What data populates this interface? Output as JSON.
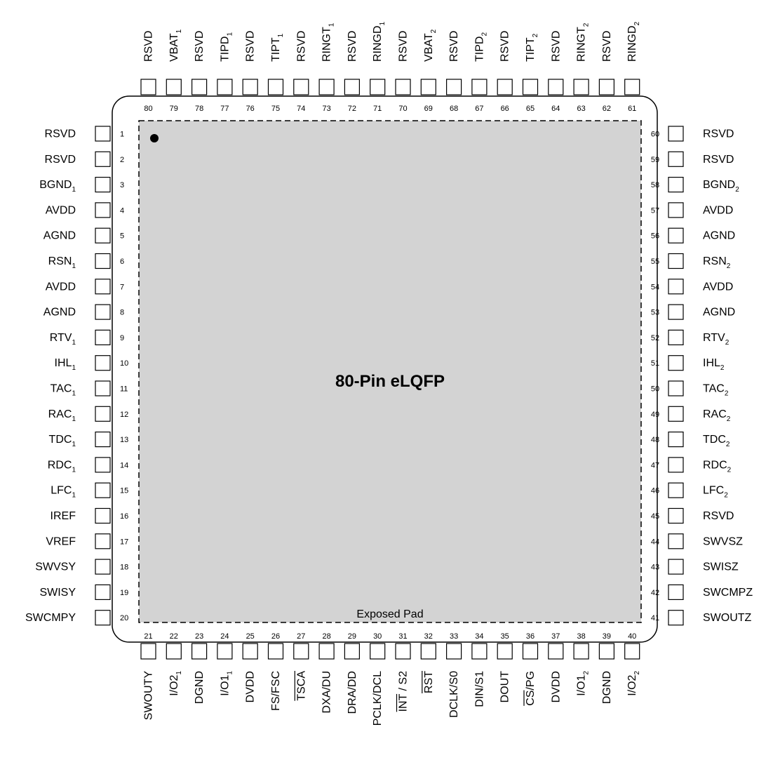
{
  "package_title": "80-Pin eLQFP",
  "exposed_pad_label": "Exposed Pad",
  "colors": {
    "pad_fill": "#d3d3d3",
    "outline": "#000000",
    "background": "#ffffff"
  },
  "pins": {
    "left": [
      {
        "num": "1",
        "name": "RSVD"
      },
      {
        "num": "2",
        "name": "RSVD"
      },
      {
        "num": "3",
        "name": "BGND",
        "sub": "1"
      },
      {
        "num": "4",
        "name": "AVDD"
      },
      {
        "num": "5",
        "name": "AGND"
      },
      {
        "num": "6",
        "name": "RSN",
        "sub": "1"
      },
      {
        "num": "7",
        "name": "AVDD"
      },
      {
        "num": "8",
        "name": "AGND"
      },
      {
        "num": "9",
        "name": "RTV",
        "sub": "1"
      },
      {
        "num": "10",
        "name": "IHL",
        "sub": "1"
      },
      {
        "num": "11",
        "name": "TAC",
        "sub": "1"
      },
      {
        "num": "12",
        "name": "RAC",
        "sub": "1"
      },
      {
        "num": "13",
        "name": "TDC",
        "sub": "1"
      },
      {
        "num": "14",
        "name": "RDC",
        "sub": "1"
      },
      {
        "num": "15",
        "name": "LFC",
        "sub": "1"
      },
      {
        "num": "16",
        "name": "IREF"
      },
      {
        "num": "17",
        "name": "VREF"
      },
      {
        "num": "18",
        "name": "SWVSY"
      },
      {
        "num": "19",
        "name": "SWISY"
      },
      {
        "num": "20",
        "name": "SWCMPY"
      }
    ],
    "right": [
      {
        "num": "60",
        "name": "RSVD"
      },
      {
        "num": "59",
        "name": "RSVD"
      },
      {
        "num": "58",
        "name": "BGND",
        "sub": "2"
      },
      {
        "num": "57",
        "name": "AVDD"
      },
      {
        "num": "56",
        "name": "AGND"
      },
      {
        "num": "55",
        "name": "RSN",
        "sub": "2"
      },
      {
        "num": "54",
        "name": "AVDD"
      },
      {
        "num": "53",
        "name": "AGND"
      },
      {
        "num": "52",
        "name": "RTV",
        "sub": "2"
      },
      {
        "num": "51",
        "name": "IHL",
        "sub": "2"
      },
      {
        "num": "50",
        "name": "TAC",
        "sub": "2"
      },
      {
        "num": "49",
        "name": "RAC",
        "sub": "2"
      },
      {
        "num": "48",
        "name": "TDC",
        "sub": "2"
      },
      {
        "num": "47",
        "name": "RDC",
        "sub": "2"
      },
      {
        "num": "46",
        "name": "LFC",
        "sub": "2"
      },
      {
        "num": "45",
        "name": "RSVD"
      },
      {
        "num": "44",
        "name": "SWVSZ"
      },
      {
        "num": "43",
        "name": "SWISZ"
      },
      {
        "num": "42",
        "name": "SWCMPZ"
      },
      {
        "num": "41",
        "name": "SWOUTZ"
      }
    ],
    "top": [
      {
        "num": "80",
        "name": "RSVD"
      },
      {
        "num": "79",
        "name": "VBAT",
        "sub": "1"
      },
      {
        "num": "78",
        "name": "RSVD"
      },
      {
        "num": "77",
        "name": "TIPD",
        "sub": "1"
      },
      {
        "num": "76",
        "name": "RSVD"
      },
      {
        "num": "75",
        "name": "TIPT",
        "sub": "1"
      },
      {
        "num": "74",
        "name": "RSVD"
      },
      {
        "num": "73",
        "name": "RINGT",
        "sub": "1"
      },
      {
        "num": "72",
        "name": "RSVD"
      },
      {
        "num": "71",
        "name": "RINGD",
        "sub": "1"
      },
      {
        "num": "70",
        "name": "RSVD"
      },
      {
        "num": "69",
        "name": "VBAT",
        "sub": "2"
      },
      {
        "num": "68",
        "name": "RSVD"
      },
      {
        "num": "67",
        "name": "TIPD",
        "sub": "2"
      },
      {
        "num": "66",
        "name": "RSVD"
      },
      {
        "num": "65",
        "name": "TIPT",
        "sub": "2"
      },
      {
        "num": "64",
        "name": "RSVD"
      },
      {
        "num": "63",
        "name": "RINGT",
        "sub": "2"
      },
      {
        "num": "62",
        "name": "RSVD"
      },
      {
        "num": "61",
        "name": "RINGD",
        "sub": "2"
      }
    ],
    "bottom": [
      {
        "num": "21",
        "name": "SWOUTY"
      },
      {
        "num": "22",
        "name": "I/O2",
        "sub": "1"
      },
      {
        "num": "23",
        "name": "DGND"
      },
      {
        "num": "24",
        "name": "I/O1",
        "sub": "1"
      },
      {
        "num": "25",
        "name": "DVDD"
      },
      {
        "num": "26",
        "name": "FS/FSC"
      },
      {
        "num": "27",
        "name": "TSCA",
        "over": "TSCA"
      },
      {
        "num": "28",
        "name": "DXA/DU"
      },
      {
        "num": "29",
        "name": "DRA/DD"
      },
      {
        "num": "30",
        "name": "PCLK/DCL"
      },
      {
        "num": "31",
        "name": "INT / S2",
        "over": "INT"
      },
      {
        "num": "32",
        "name": "RST",
        "over": "RST"
      },
      {
        "num": "33",
        "name": "DCLK/S0"
      },
      {
        "num": "34",
        "name": "DIN/S1"
      },
      {
        "num": "35",
        "name": "DOUT"
      },
      {
        "num": "36",
        "name": "CS/PG",
        "over": "CS"
      },
      {
        "num": "37",
        "name": "DVDD"
      },
      {
        "num": "38",
        "name": "I/O1",
        "sub": "2"
      },
      {
        "num": "39",
        "name": "DGND"
      },
      {
        "num": "40",
        "name": "I/O2",
        "sub": "2"
      }
    ]
  }
}
